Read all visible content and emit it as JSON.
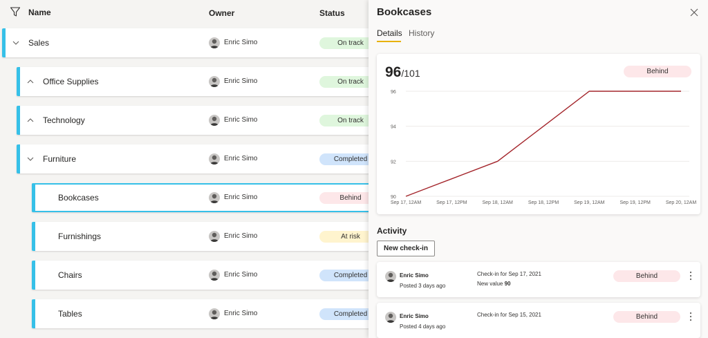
{
  "list": {
    "header": {
      "name": "Name",
      "owner": "Owner",
      "status": "Status"
    },
    "rows": [
      {
        "name": "Sales",
        "owner": "Enric Simo",
        "status": "On track",
        "chevron": "chevron-down-icon",
        "level": 0
      },
      {
        "name": "Office Supplies",
        "owner": "Enric Simo",
        "status": "On track",
        "chevron": "chevron-up-icon",
        "level": 1
      },
      {
        "name": "Technology",
        "owner": "Enric Simo",
        "status": "On track",
        "chevron": "chevron-up-icon",
        "level": 1
      },
      {
        "name": "Furniture",
        "owner": "Enric Simo",
        "status": "Completed",
        "chevron": "chevron-down-icon",
        "level": 1
      },
      {
        "name": "Bookcases",
        "owner": "Enric Simo",
        "status": "Behind",
        "level": 2,
        "selected": true
      },
      {
        "name": "Furnishings",
        "owner": "Enric Simo",
        "status": "At risk",
        "level": 2
      },
      {
        "name": "Chairs",
        "owner": "Enric Simo",
        "status": "Completed",
        "level": 2
      },
      {
        "name": "Tables",
        "owner": "Enric Simo",
        "status": "Completed",
        "level": 2
      }
    ]
  },
  "panel": {
    "title": "Bookcases",
    "tabs": {
      "details": "Details",
      "history": "History"
    },
    "value": "96",
    "target": "/101",
    "status": "Behind",
    "activity_title": "Activity",
    "new_checkin_label": "New check-in",
    "activity": [
      {
        "name": "Enric Simo",
        "posted": "Posted 3 days ago",
        "checkin": "Check-in for Sep 17, 2021",
        "new_value_label": "New value",
        "new_value": "90",
        "status": "Behind"
      },
      {
        "name": "Enric Simo",
        "posted": "Posted 4 days ago",
        "checkin": "Check-in for Sep 15, 2021",
        "status": "Behind"
      }
    ]
  },
  "colors": {
    "accent_bar": "#36c0e8",
    "line": "#a4262c",
    "tab_underline": "#e8b100"
  },
  "chart_data": {
    "type": "line",
    "x": [
      "Sep 17, 12AM",
      "Sep 17, 12PM",
      "Sep 18, 12AM",
      "Sep 18, 12PM",
      "Sep 19, 12AM",
      "Sep 19, 12PM",
      "Sep 20, 12AM"
    ],
    "series": [
      {
        "values": [
          90,
          91,
          92,
          94,
          96,
          96,
          96
        ]
      }
    ],
    "ylim": [
      90,
      96
    ],
    "yticks": [
      96,
      94,
      92,
      90
    ],
    "grid": true
  }
}
